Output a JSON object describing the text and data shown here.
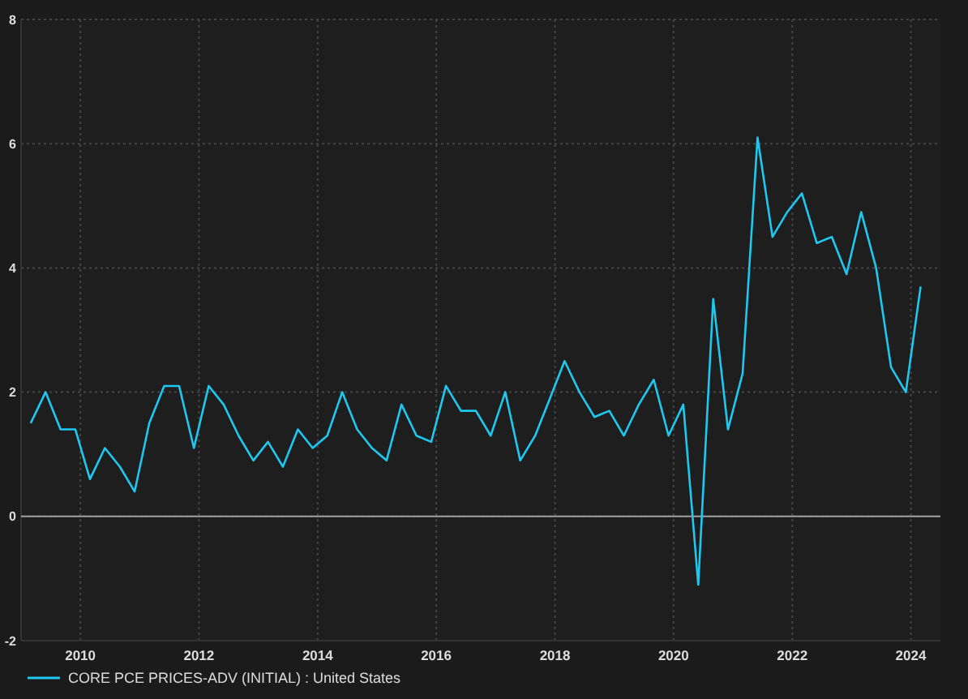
{
  "chart_data": {
    "type": "line",
    "x": [
      "2009-03",
      "2009-06",
      "2009-09",
      "2009-12",
      "2010-03",
      "2010-06",
      "2010-09",
      "2010-12",
      "2011-03",
      "2011-06",
      "2011-09",
      "2011-12",
      "2012-03",
      "2012-06",
      "2012-09",
      "2012-12",
      "2013-03",
      "2013-06",
      "2013-09",
      "2013-12",
      "2014-03",
      "2014-06",
      "2014-09",
      "2014-12",
      "2015-03",
      "2015-06",
      "2015-09",
      "2015-12",
      "2016-03",
      "2016-06",
      "2016-09",
      "2016-12",
      "2017-03",
      "2017-06",
      "2017-09",
      "2017-12",
      "2018-03",
      "2018-06",
      "2018-09",
      "2018-12",
      "2019-03",
      "2019-06",
      "2019-09",
      "2019-12",
      "2020-03",
      "2020-06",
      "2020-09",
      "2020-12",
      "2021-03",
      "2021-06",
      "2021-09",
      "2021-12",
      "2022-03",
      "2022-06",
      "2022-09",
      "2022-12",
      "2023-03",
      "2023-06",
      "2023-09",
      "2023-12",
      "2024-03"
    ],
    "series": [
      {
        "name": "CORE PCE PRICES-ADV (INITIAL) : United States",
        "color": "#1ec8f0",
        "values": [
          1.5,
          2.0,
          1.4,
          1.4,
          0.6,
          1.1,
          0.8,
          0.4,
          1.5,
          2.1,
          2.1,
          1.1,
          2.1,
          1.8,
          1.3,
          0.9,
          1.2,
          0.8,
          1.4,
          1.1,
          1.3,
          2.0,
          1.4,
          1.1,
          0.9,
          1.8,
          1.3,
          1.2,
          2.1,
          1.7,
          1.7,
          1.3,
          2.0,
          0.9,
          1.3,
          1.9,
          2.5,
          2.0,
          1.6,
          1.7,
          1.3,
          1.8,
          2.2,
          1.3,
          1.8,
          -1.1,
          3.5,
          1.4,
          2.3,
          6.1,
          4.5,
          4.9,
          5.2,
          4.4,
          4.5,
          3.9,
          4.9,
          4.0,
          2.4,
          2.0,
          3.7
        ]
      }
    ],
    "xlim": [
      "2009-01",
      "2024-07"
    ],
    "xticks": [
      {
        "value": "2010-01",
        "label": "2010"
      },
      {
        "value": "2012-01",
        "label": "2012"
      },
      {
        "value": "2014-01",
        "label": "2014"
      },
      {
        "value": "2016-01",
        "label": "2016"
      },
      {
        "value": "2018-01",
        "label": "2018"
      },
      {
        "value": "2020-01",
        "label": "2020"
      },
      {
        "value": "2022-01",
        "label": "2022"
      },
      {
        "value": "2024-01",
        "label": "2024"
      }
    ],
    "ylim": [
      -2,
      8
    ],
    "yticks": [
      -2,
      0,
      2,
      4,
      6,
      8
    ],
    "ref_lines": [
      {
        "axis": "y",
        "value": 0,
        "color": "#a0a0a0"
      }
    ],
    "grid": true,
    "legend": "bottom left",
    "marker": "none",
    "line_style": "solid"
  }
}
